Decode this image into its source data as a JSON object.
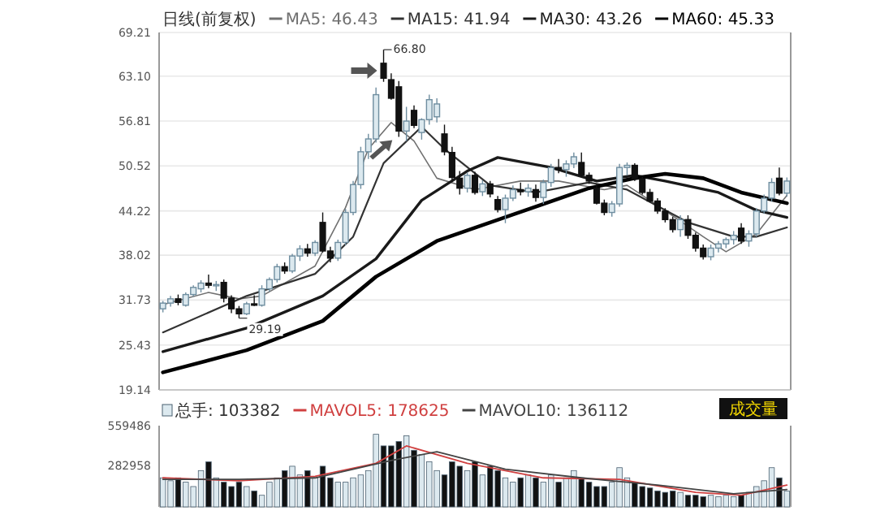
{
  "chart_data": [
    {
      "type": "candlestick",
      "title": "日线(前复权)",
      "legend": "top",
      "grid": "y",
      "colors": [
        "#dce9ef",
        "#dce9ef",
        "#111111",
        "#dce9ef",
        "#dce9ef",
        "#dce9ef",
        "#111111",
        "#dce9ef",
        "#111111",
        "#111111",
        "#111111",
        "#dce9ef",
        "#111111",
        "#dce9ef",
        "#dce9ef",
        "#dce9ef",
        "#111111",
        "#dce9ef",
        "#dce9ef",
        "#111111",
        "#dce9ef",
        "#111111",
        "#111111",
        "#dce9ef",
        "#dce9ef",
        "#dce9ef",
        "#dce9ef",
        "#dce9ef",
        "#dce9ef",
        "#111111",
        "#111111",
        "#111111",
        "#dce9ef",
        "#111111",
        "#dce9ef",
        "#dce9ef",
        "#dce9ef",
        "#111111",
        "#111111",
        "#111111",
        "#dce9ef",
        "#111111",
        "#dce9ef",
        "#111111",
        "#111111",
        "#dce9ef",
        "#dce9ef",
        "#111111",
        "#dce9ef",
        "#111111",
        "#dce9ef",
        "#dce9ef",
        "#111111",
        "#dce9ef",
        "#dce9ef",
        "#111111",
        "#111111",
        "#111111",
        "#111111",
        "#dce9ef",
        "#dce9ef",
        "#dce9ef",
        "#111111",
        "#111111",
        "#111111",
        "#111111",
        "#111111",
        "#111111",
        "#dce9ef",
        "#111111",
        "#111111",
        "#111111",
        "#dce9ef",
        "#dce9ef",
        "#dce9ef",
        "#dce9ef",
        "#111111",
        "#dce9ef",
        "#dce9ef",
        "#dce9ef",
        "#dce9ef",
        "#111111",
        "#dce9ef"
      ],
      "categories": [
        null,
        null,
        null,
        null,
        null,
        null,
        null,
        null,
        null,
        null,
        null,
        null,
        null,
        null,
        null,
        null,
        null,
        null,
        null,
        null,
        null,
        null,
        null,
        null,
        null,
        null,
        null,
        null,
        null,
        null,
        null,
        null,
        null,
        null,
        null,
        null,
        null,
        null,
        null,
        null,
        null,
        null,
        null,
        null,
        null,
        null,
        null,
        null,
        null,
        null,
        null,
        null,
        null,
        null,
        null,
        null,
        null,
        null,
        null,
        null,
        null,
        null,
        null,
        null,
        null,
        null,
        null,
        null,
        null,
        null,
        null,
        null,
        null,
        null,
        null,
        null,
        null,
        null,
        null,
        null,
        null,
        null,
        null
      ],
      "ohlc": [
        [
          30.5,
          31.6,
          30.0,
          31.3
        ],
        [
          31.3,
          32.3,
          30.8,
          31.9
        ],
        [
          31.9,
          32.5,
          31.0,
          31.4
        ],
        [
          31.0,
          32.8,
          30.8,
          32.5
        ],
        [
          32.5,
          33.8,
          32.2,
          33.5
        ],
        [
          33.3,
          34.5,
          32.8,
          34.1
        ],
        [
          34.1,
          35.3,
          33.4,
          33.8
        ],
        [
          33.8,
          34.4,
          33.0,
          33.9
        ],
        [
          34.2,
          34.6,
          31.4,
          32.0
        ],
        [
          32.0,
          32.4,
          29.9,
          30.5
        ],
        [
          30.5,
          30.9,
          29.19,
          29.8
        ],
        [
          29.8,
          31.5,
          29.6,
          31.2
        ],
        [
          31.2,
          32.4,
          30.9,
          31.0
        ],
        [
          31.0,
          33.8,
          30.8,
          33.3
        ],
        [
          33.3,
          34.9,
          32.9,
          34.6
        ],
        [
          34.6,
          36.8,
          34.2,
          36.4
        ],
        [
          36.4,
          37.0,
          35.4,
          35.8
        ],
        [
          35.8,
          38.2,
          35.5,
          37.9
        ],
        [
          37.9,
          39.4,
          37.2,
          38.9
        ],
        [
          38.9,
          39.6,
          37.8,
          38.3
        ],
        [
          38.3,
          40.1,
          37.9,
          39.8
        ],
        [
          42.6,
          44.0,
          38.4,
          38.6
        ],
        [
          38.6,
          39.2,
          37.0,
          37.6
        ],
        [
          37.6,
          40.2,
          37.2,
          39.8
        ],
        [
          39.8,
          44.5,
          39.4,
          44.0
        ],
        [
          44.0,
          48.4,
          43.6,
          47.9
        ],
        [
          47.9,
          53.2,
          47.3,
          52.5
        ],
        [
          52.5,
          55.0,
          51.5,
          54.3
        ],
        [
          54.3,
          61.5,
          53.8,
          60.5
        ],
        [
          64.9,
          66.8,
          62.3,
          62.8
        ],
        [
          62.6,
          63.5,
          59.8,
          60.0
        ],
        [
          61.6,
          62.4,
          54.6,
          55.4
        ],
        [
          55.4,
          58.8,
          54.0,
          56.8
        ],
        [
          58.3,
          59.0,
          55.8,
          56.2
        ],
        [
          55.2,
          57.2,
          54.2,
          57.0
        ],
        [
          57.0,
          60.5,
          56.3,
          59.8
        ],
        [
          57.4,
          60.0,
          56.6,
          59.2
        ],
        [
          55.0,
          56.3,
          52.0,
          52.5
        ],
        [
          52.4,
          53.2,
          48.3,
          48.9
        ],
        [
          48.8,
          49.8,
          46.5,
          47.4
        ],
        [
          47.4,
          49.6,
          46.8,
          49.2
        ],
        [
          49.2,
          49.7,
          46.5,
          46.8
        ],
        [
          46.9,
          48.5,
          46.3,
          48.0
        ],
        [
          48.0,
          48.4,
          46.1,
          46.6
        ],
        [
          45.8,
          46.3,
          44.0,
          44.4
        ],
        [
          44.4,
          46.5,
          42.5,
          46.0
        ],
        [
          46.0,
          47.8,
          45.6,
          47.2
        ],
        [
          47.2,
          48.2,
          46.4,
          46.9
        ],
        [
          46.9,
          48.0,
          46.2,
          47.4
        ],
        [
          47.2,
          47.9,
          45.5,
          46.1
        ],
        [
          46.1,
          48.6,
          45.2,
          48.2
        ],
        [
          48.2,
          50.8,
          47.6,
          50.3
        ],
        [
          50.3,
          51.5,
          49.5,
          50.0
        ],
        [
          50.0,
          51.3,
          49.0,
          50.8
        ],
        [
          50.8,
          52.4,
          50.2,
          51.8
        ],
        [
          51.0,
          52.4,
          49.0,
          49.2
        ],
        [
          49.2,
          49.6,
          48.0,
          48.4
        ],
        [
          47.4,
          48.0,
          45.1,
          45.3
        ],
        [
          45.3,
          45.8,
          43.6,
          44.0
        ],
        [
          44.0,
          45.6,
          43.4,
          45.2
        ],
        [
          45.2,
          50.8,
          44.8,
          50.3
        ],
        [
          50.3,
          51.0,
          49.2,
          50.6
        ],
        [
          50.6,
          50.9,
          48.4,
          48.7
        ],
        [
          48.7,
          49.0,
          46.5,
          46.8
        ],
        [
          46.8,
          47.3,
          45.4,
          45.6
        ],
        [
          45.6,
          46.0,
          43.8,
          44.2
        ],
        [
          44.2,
          44.6,
          42.6,
          43.0
        ],
        [
          43.0,
          43.4,
          41.2,
          41.6
        ],
        [
          41.6,
          43.6,
          40.6,
          43.0
        ],
        [
          43.0,
          43.6,
          40.3,
          40.8
        ],
        [
          40.8,
          41.2,
          38.5,
          39.0
        ],
        [
          39.0,
          39.5,
          37.4,
          37.8
        ],
        [
          37.8,
          39.5,
          37.3,
          39.0
        ],
        [
          39.0,
          40.0,
          38.4,
          39.6
        ],
        [
          39.6,
          40.5,
          39.0,
          40.2
        ],
        [
          40.2,
          41.4,
          39.5,
          40.8
        ],
        [
          41.8,
          42.5,
          39.6,
          40.0
        ],
        [
          40.0,
          41.5,
          39.2,
          41.0
        ],
        [
          41.0,
          44.6,
          40.6,
          44.2
        ],
        [
          44.2,
          46.5,
          43.8,
          46.0
        ],
        [
          46.0,
          48.8,
          45.5,
          48.2
        ],
        [
          48.8,
          50.3,
          46.4,
          46.7
        ],
        [
          46.7,
          48.9,
          46.2,
          48.4
        ]
      ],
      "series": [
        {
          "name": "MA5: 46.43",
          "type": "line",
          "color": "#707070",
          "values": [
            31.1,
            null,
            null,
            null,
            null,
            null,
            32.8,
            null,
            null,
            null,
            31.9,
            null,
            null,
            32.3,
            null,
            null,
            null,
            null,
            null,
            null,
            36.5,
            null,
            null,
            null,
            44.7,
            null,
            null,
            52.9,
            null,
            null,
            56.6,
            null,
            null,
            54.0,
            null,
            null,
            48.8,
            null,
            null,
            null,
            null,
            47.2,
            null,
            null,
            null,
            null,
            null,
            48.4,
            null,
            null,
            null,
            null,
            48.4,
            null,
            null,
            null,
            null,
            null,
            47.2,
            null,
            null,
            47.8,
            null,
            null,
            45.7,
            null,
            null,
            null,
            null,
            null,
            null,
            40.6,
            null,
            null,
            38.5,
            null,
            null,
            null,
            41.0,
            null,
            null,
            null,
            46.4
          ]
        },
        {
          "name": "MA15: 41.94",
          "type": "line",
          "color": "#333333",
          "values": [
            27.2,
            null,
            null,
            null,
            null,
            null,
            null,
            null,
            null,
            null,
            null,
            32.3,
            null,
            null,
            null,
            null,
            null,
            null,
            null,
            null,
            35.4,
            null,
            null,
            null,
            null,
            40.6,
            null,
            null,
            null,
            50.9,
            null,
            null,
            null,
            null,
            56.0,
            null,
            null,
            52.9,
            null,
            null,
            null,
            null,
            null,
            47.8,
            null,
            null,
            null,
            null,
            null,
            46.8,
            null,
            null,
            null,
            null,
            null,
            null,
            48.2,
            null,
            null,
            null,
            null,
            47.2,
            null,
            null,
            null,
            null,
            null,
            null,
            null,
            42.6,
            null,
            null,
            null,
            null,
            null,
            40.6,
            null,
            null,
            40.6,
            null,
            null,
            null,
            41.9
          ]
        },
        {
          "name": "MA30: 43.26",
          "type": "line",
          "color": "#1a1a1a",
          "values": [
            24.5,
            null,
            null,
            null,
            null,
            null,
            null,
            null,
            null,
            null,
            null,
            27.8,
            null,
            null,
            null,
            null,
            null,
            null,
            null,
            null,
            null,
            32.3,
            null,
            null,
            null,
            null,
            null,
            null,
            37.5,
            null,
            null,
            null,
            null,
            null,
            45.7,
            null,
            null,
            null,
            null,
            null,
            49.8,
            null,
            null,
            null,
            51.7,
            null,
            null,
            null,
            null,
            null,
            null,
            50.3,
            null,
            null,
            null,
            null,
            null,
            48.4,
            null,
            null,
            null,
            null,
            49.2,
            null,
            null,
            null,
            48.4,
            null,
            null,
            null,
            null,
            null,
            null,
            46.8,
            null,
            null,
            null,
            null,
            44.3,
            null,
            null,
            null,
            43.3
          ]
        },
        {
          "name": "MA60: 45.33",
          "type": "line",
          "color": "#000000",
          "values": [
            21.6,
            null,
            null,
            null,
            null,
            null,
            null,
            null,
            null,
            null,
            null,
            24.7,
            null,
            null,
            null,
            null,
            null,
            null,
            null,
            null,
            null,
            28.8,
            null,
            null,
            null,
            null,
            null,
            null,
            35.0,
            null,
            null,
            null,
            null,
            null,
            null,
            null,
            40.0,
            null,
            null,
            null,
            null,
            null,
            null,
            null,
            null,
            null,
            43.7,
            null,
            null,
            null,
            null,
            null,
            null,
            null,
            null,
            null,
            47.4,
            null,
            null,
            null,
            null,
            null,
            48.8,
            null,
            null,
            null,
            49.4,
            null,
            null,
            null,
            null,
            48.8,
            null,
            null,
            null,
            null,
            46.8,
            null,
            null,
            null,
            null,
            null,
            45.3
          ]
        }
      ],
      "ylim": [
        19.14,
        69.21
      ],
      "yticks": [
        19.14,
        25.43,
        31.73,
        38.02,
        44.22,
        50.52,
        56.81,
        {
          "value": 63.1,
          "label": "63.10"
        },
        69.21
      ],
      "annotations": [
        "66.80",
        "29.19"
      ]
    },
    {
      "type": "bar",
      "legend": "top left",
      "categories": [
        null,
        null,
        null,
        null,
        null,
        null,
        null,
        null,
        null,
        null,
        null,
        null,
        null,
        null,
        null,
        null,
        null,
        null,
        null,
        null,
        null,
        null,
        null,
        null,
        null,
        null,
        null,
        null,
        null,
        null,
        null,
        null,
        null,
        null,
        null,
        null,
        null,
        null,
        null,
        null,
        null,
        null,
        null,
        null,
        null,
        null,
        null,
        null,
        null,
        null,
        null,
        null,
        null,
        null,
        null,
        null,
        null,
        null,
        null,
        null,
        null,
        null,
        null,
        null,
        null,
        null,
        null,
        null,
        null,
        null,
        null,
        null,
        null,
        null,
        null,
        null,
        null,
        null,
        null,
        null,
        null,
        null,
        null
      ],
      "series": [
        {
          "name": "总手: 103382",
          "type": "bar",
          "values": [
            200000,
            180000,
            200000,
            170000,
            140000,
            250000,
            310000,
            200000,
            170000,
            140000,
            170000,
            140000,
            110000,
            80000,
            170000,
            200000,
            250000,
            280000,
            220000,
            250000,
            200000,
            280000,
            200000,
            170000,
            170000,
            200000,
            220000,
            250000,
            500000,
            420000,
            420000,
            450000,
            490000,
            390000,
            360000,
            310000,
            250000,
            220000,
            310000,
            280000,
            250000,
            310000,
            220000,
            280000,
            250000,
            200000,
            170000,
            200000,
            220000,
            200000,
            170000,
            220000,
            170000,
            200000,
            250000,
            200000,
            170000,
            140000,
            140000,
            170000,
            270000,
            200000,
            170000,
            140000,
            130000,
            110000,
            100000,
            110000,
            100000,
            80000,
            80000,
            70000,
            80000,
            70000,
            80000,
            70000,
            80000,
            100000,
            140000,
            180000,
            270000,
            200000,
            110000
          ],
          "colors": [
            "#dce9ef",
            "#dce9ef",
            "#111111",
            "#dce9ef",
            "#dce9ef",
            "#dce9ef",
            "#111111",
            "#dce9ef",
            "#111111",
            "#111111",
            "#111111",
            "#dce9ef",
            "#111111",
            "#dce9ef",
            "#dce9ef",
            "#dce9ef",
            "#111111",
            "#dce9ef",
            "#dce9ef",
            "#111111",
            "#dce9ef",
            "#111111",
            "#111111",
            "#dce9ef",
            "#dce9ef",
            "#dce9ef",
            "#dce9ef",
            "#dce9ef",
            "#dce9ef",
            "#111111",
            "#111111",
            "#111111",
            "#dce9ef",
            "#111111",
            "#dce9ef",
            "#dce9ef",
            "#dce9ef",
            "#111111",
            "#111111",
            "#111111",
            "#dce9ef",
            "#111111",
            "#dce9ef",
            "#111111",
            "#111111",
            "#dce9ef",
            "#dce9ef",
            "#111111",
            "#dce9ef",
            "#111111",
            "#dce9ef",
            "#dce9ef",
            "#111111",
            "#dce9ef",
            "#dce9ef",
            "#111111",
            "#111111",
            "#111111",
            "#111111",
            "#dce9ef",
            "#dce9ef",
            "#dce9ef",
            "#111111",
            "#111111",
            "#111111",
            "#111111",
            "#111111",
            "#111111",
            "#dce9ef",
            "#111111",
            "#111111",
            "#111111",
            "#dce9ef",
            "#dce9ef",
            "#dce9ef",
            "#dce9ef",
            "#111111",
            "#dce9ef",
            "#dce9ef",
            "#dce9ef",
            "#dce9ef",
            "#111111",
            "#dce9ef"
          ]
        },
        {
          "name": "MAVOL5: 178625",
          "type": "line",
          "color": "#d04040",
          "values": [
            200000,
            null,
            null,
            null,
            null,
            null,
            null,
            null,
            null,
            null,
            180000,
            null,
            null,
            null,
            null,
            null,
            null,
            null,
            null,
            null,
            210000,
            null,
            null,
            null,
            null,
            null,
            null,
            null,
            300000,
            null,
            null,
            null,
            420000,
            null,
            null,
            null,
            null,
            null,
            null,
            null,
            300000,
            null,
            null,
            null,
            null,
            null,
            null,
            null,
            null,
            null,
            200000,
            null,
            null,
            null,
            null,
            null,
            null,
            null,
            null,
            null,
            190000,
            null,
            null,
            null,
            null,
            null,
            null,
            null,
            null,
            null,
            100000,
            null,
            null,
            null,
            null,
            null,
            80000,
            null,
            null,
            null,
            null,
            null,
            150000
          ]
        },
        {
          "name": "MAVOL10: 136112",
          "type": "line",
          "color": "#444444",
          "values": [
            190000,
            null,
            null,
            null,
            null,
            null,
            null,
            null,
            null,
            null,
            190000,
            null,
            null,
            null,
            null,
            null,
            null,
            null,
            null,
            null,
            200000,
            null,
            null,
            null,
            null,
            null,
            null,
            null,
            null,
            null,
            320000,
            null,
            null,
            null,
            null,
            null,
            380000,
            null,
            null,
            null,
            null,
            null,
            null,
            null,
            null,
            260000,
            null,
            null,
            null,
            null,
            null,
            null,
            null,
            null,
            null,
            200000,
            null,
            null,
            null,
            null,
            null,
            null,
            null,
            null,
            null,
            150000,
            null,
            null,
            null,
            null,
            null,
            null,
            null,
            null,
            null,
            90000,
            null,
            null,
            null,
            null,
            null,
            null,
            120000
          ]
        }
      ],
      "ylim": [
        0,
        559486
      ],
      "yticks": [
        282958,
        559486
      ],
      "annotations": [
        "成交量"
      ]
    }
  ]
}
